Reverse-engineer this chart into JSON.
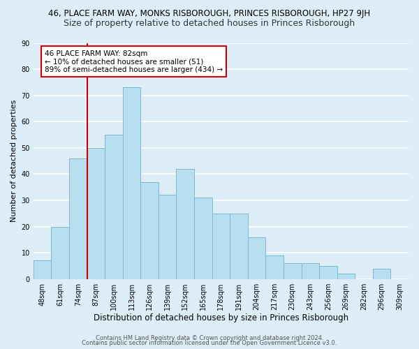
{
  "title_main": "46, PLACE FARM WAY, MONKS RISBOROUGH, PRINCES RISBOROUGH, HP27 9JH",
  "title_sub": "Size of property relative to detached houses in Princes Risborough",
  "xlabel": "Distribution of detached houses by size in Princes Risborough",
  "ylabel": "Number of detached properties",
  "bar_labels": [
    "48sqm",
    "61sqm",
    "74sqm",
    "87sqm",
    "100sqm",
    "113sqm",
    "126sqm",
    "139sqm",
    "152sqm",
    "165sqm",
    "178sqm",
    "191sqm",
    "204sqm",
    "217sqm",
    "230sqm",
    "243sqm",
    "256sqm",
    "269sqm",
    "282sqm",
    "296sqm",
    "309sqm"
  ],
  "bar_values": [
    7,
    20,
    46,
    50,
    55,
    73,
    37,
    32,
    42,
    31,
    25,
    25,
    16,
    9,
    6,
    6,
    5,
    2,
    0,
    4,
    0
  ],
  "bar_color": "#b8dff0",
  "bar_edge_color": "#7ab8d4",
  "background_color": "#deeef8",
  "grid_color": "#ffffff",
  "vline_x_index": 2.5,
  "vline_color": "#cc0000",
  "annotation_title": "46 PLACE FARM WAY: 82sqm",
  "annotation_line1": "← 10% of detached houses are smaller (51)",
  "annotation_line2": "89% of semi-detached houses are larger (434) →",
  "annotation_box_color": "#ffffff",
  "annotation_box_edge": "#cc0000",
  "ylim": [
    0,
    90
  ],
  "yticks": [
    0,
    10,
    20,
    30,
    40,
    50,
    60,
    70,
    80,
    90
  ],
  "footer1": "Contains HM Land Registry data © Crown copyright and database right 2024.",
  "footer2": "Contains public sector information licensed under the Open Government Licence v3.0.",
  "title_fontsize": 8.5,
  "subtitle_fontsize": 9,
  "xlabel_fontsize": 8.5,
  "ylabel_fontsize": 8,
  "tick_fontsize": 7,
  "annotation_fontsize": 7.5,
  "footer_fontsize": 6.0
}
